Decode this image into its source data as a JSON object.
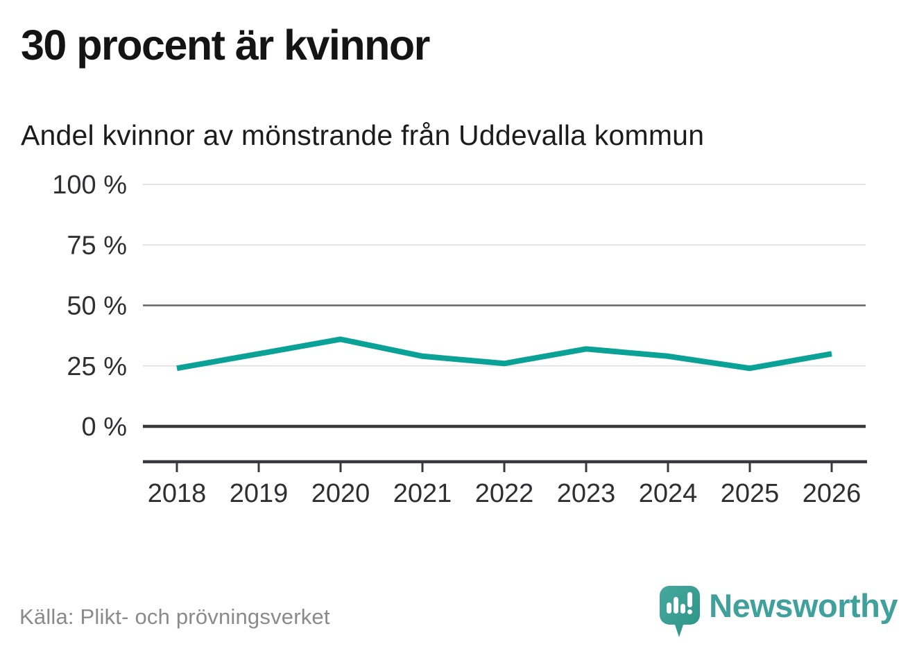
{
  "title": "30 procent är kvinnor",
  "subtitle": "Andel kvinnor av mönstrande från Uddevalla kommun",
  "source": "Källa: Plikt- och prövningsverket",
  "brand": {
    "name": "Newsworthy",
    "wordmark_color": "#3fa09c",
    "icon_color_top": "#46a89c",
    "icon_color_bottom": "#2d9488"
  },
  "chart_data": {
    "type": "line",
    "title": "Andel kvinnor av mönstrande från Uddevalla kommun",
    "x": [
      2018,
      2019,
      2020,
      2021,
      2022,
      2023,
      2024,
      2025,
      2026
    ],
    "series": [
      {
        "name": "Andel kvinnor av mönstrande",
        "values": [
          24,
          30,
          36,
          29,
          26,
          32,
          29,
          24,
          30
        ]
      }
    ],
    "unit": "%",
    "xlabel": "",
    "ylabel": "",
    "ylim": [
      0,
      100
    ],
    "yticks": [
      0,
      25,
      50,
      75,
      100
    ],
    "ytick_labels": [
      "0 %",
      "25 %",
      "50 %",
      "75 %",
      "100 %"
    ],
    "grid": "horizontal",
    "legend_position": "none",
    "line_color": "#0aa296"
  }
}
